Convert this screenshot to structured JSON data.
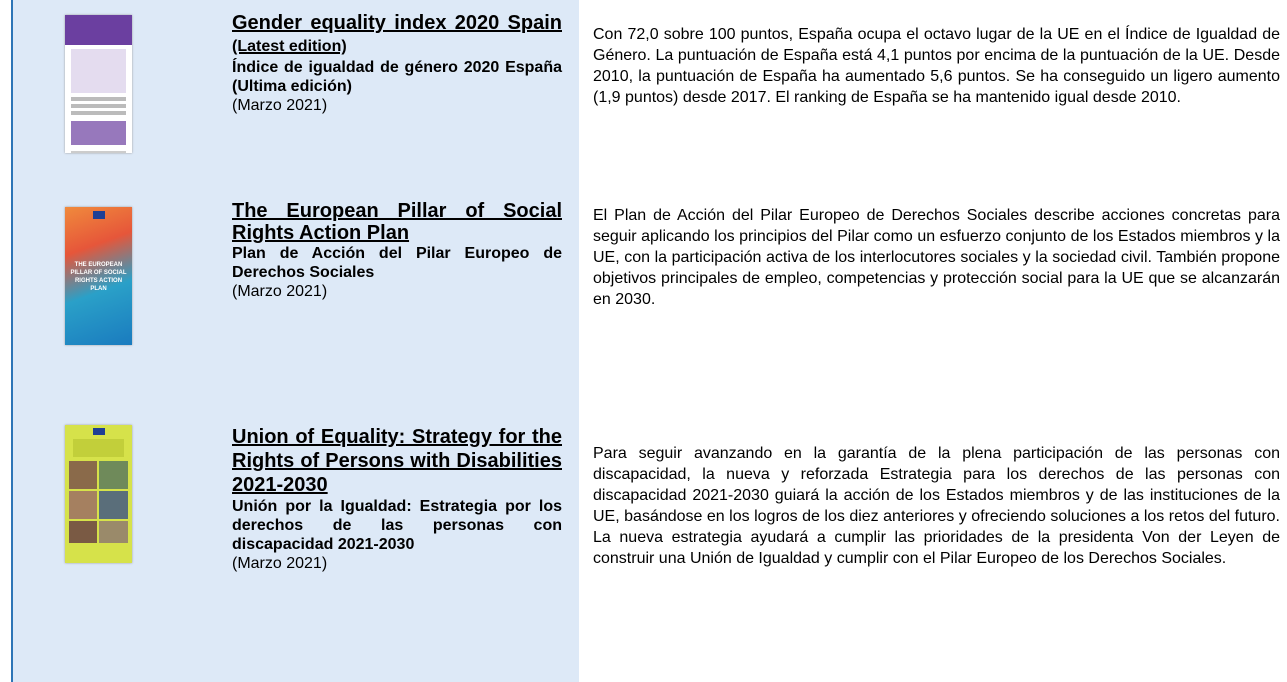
{
  "rows": [
    {
      "title": "Gender equality index 2020 Spain",
      "edition": "(Latest edition)",
      "subtitle": "Índice de igualdad de género 2020 España (Ultima edición)",
      "date": "(Marzo 2021)",
      "description": "Con 72,0 sobre 100 puntos, España ocupa el octavo lugar de la UE en el Índice de Igualdad de Género. La puntuación de España está 4,1 puntos por encima de la puntuación de la UE. Desde 2010, la puntuación de España ha aumentado 5,6 puntos. Se ha conseguido un ligero aumento (1,9 puntos) desde 2017. El ranking de España se ha mantenido igual desde 2010."
    },
    {
      "title": "The European Pillar of Social Rights Action Plan",
      "cover_text": "THE EUROPEAN PILLAR OF SOCIAL RIGHTS ACTION PLAN",
      "subtitle": "Plan de Acción del Pilar Europeo de Derechos Sociales",
      "date": "(Marzo 2021)",
      "description": "El Plan de Acción del Pilar Europeo de Derechos Sociales describe acciones concretas para seguir aplicando los principios del Pilar como un esfuerzo conjunto de los Estados miembros y la UE, con la participación activa de los interlocutores sociales y la sociedad civil. También propone objetivos principales de empleo, competencias y protección social para la UE que se alcanzarán en 2030."
    },
    {
      "title": "Union of Equality: Strategy for the Rights of Persons with Disabilities 2021-2030",
      "subtitle": "Unión por la Igualdad: Estrategia por los derechos de las personas con discapacidad 2021-2030",
      "date": "(Marzo 2021)",
      "description": "Para seguir avanzando en la garantía de la plena participación de las personas con discapacidad, la nueva y reforzada Estrategia para los derechos de las personas con discapacidad 2021-2030 guiará la acción de los Estados miembros y de las instituciones de la UE, basándose en los logros de los diez anteriores y ofreciendo soluciones a los retos del futuro. La nueva estrategia ayudará a cumplir las prioridades de la presidenta Von der Leyen de construir una Unión de Igualdad y cumplir con el Pilar Europeo de los Derechos Sociales."
    }
  ]
}
